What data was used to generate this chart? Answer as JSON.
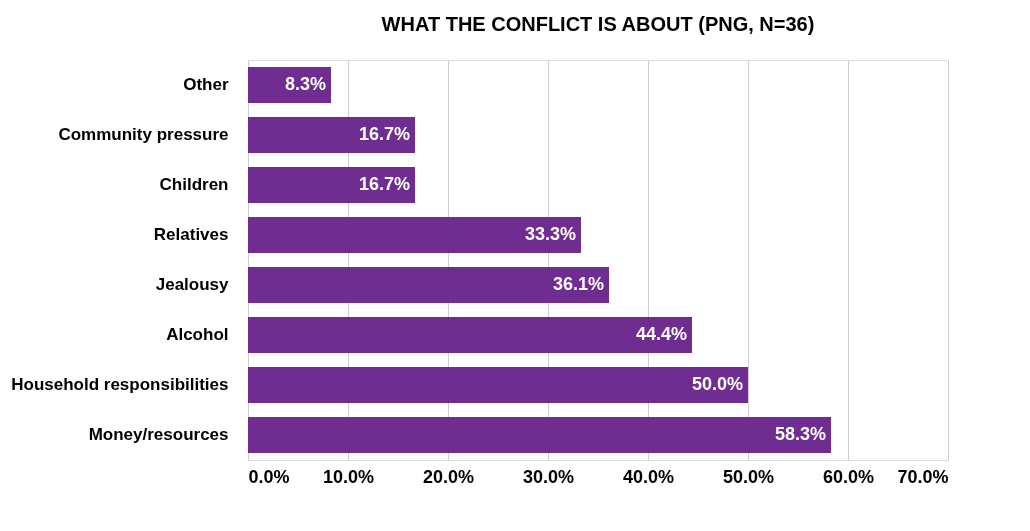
{
  "chart_data": {
    "type": "bar",
    "orientation": "horizontal",
    "title": "WHAT THE CONFLICT IS ABOUT (PNG, N=36)",
    "categories": [
      "Other",
      "Community pressure",
      "Children",
      "Relatives",
      "Jealousy",
      "Alcohol",
      "Household responsibilities",
      "Money/resources"
    ],
    "values": [
      8.3,
      16.7,
      16.7,
      33.3,
      36.1,
      44.4,
      50.0,
      58.3
    ],
    "value_labels": [
      "8.3%",
      "16.7%",
      "16.7%",
      "33.3%",
      "36.1%",
      "44.4%",
      "50.0%",
      "58.3%"
    ],
    "color": "#6f2c91",
    "xlim": [
      0,
      70
    ],
    "xticks": [
      {
        "value": 0,
        "label": "0.0%"
      },
      {
        "value": 10,
        "label": "10.0%"
      },
      {
        "value": 20,
        "label": "20.0%"
      },
      {
        "value": 30,
        "label": "30.0%"
      },
      {
        "value": 40,
        "label": "40.0%"
      },
      {
        "value": 50,
        "label": "50.0%"
      },
      {
        "value": 60,
        "label": "60.0%"
      },
      {
        "value": 70,
        "label": "70.0%"
      }
    ],
    "grid": "x"
  }
}
